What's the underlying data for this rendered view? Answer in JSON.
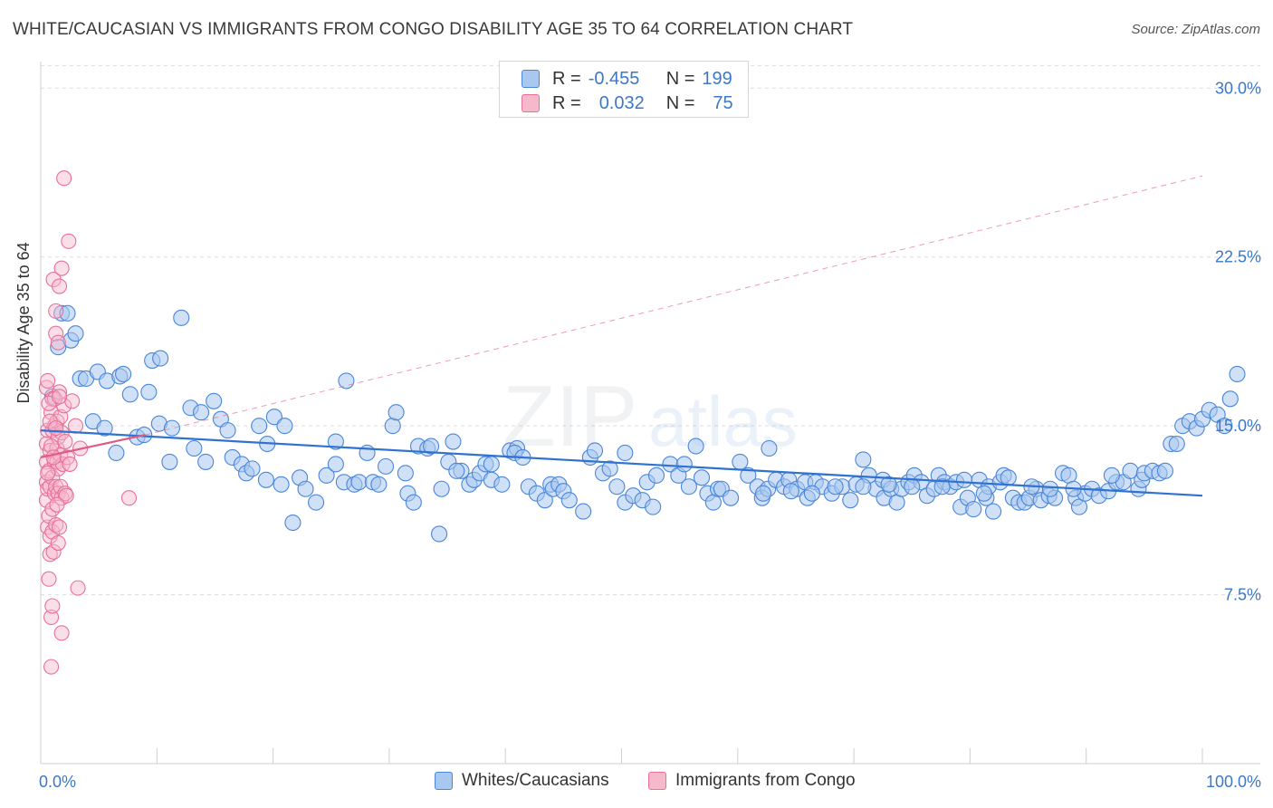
{
  "header": {
    "title": "WHITE/CAUCASIAN VS IMMIGRANTS FROM CONGO DISABILITY AGE 35 TO 64 CORRELATION CHART",
    "source": "Source: ZipAtlas.com"
  },
  "watermark": {
    "part1": "ZIP",
    "part2": "atlas"
  },
  "legend_top": {
    "rows": [
      {
        "r_label": "R =",
        "r_value": "-0.455",
        "n_label": "N =",
        "n_value": "199"
      },
      {
        "r_label": "R =",
        "r_value": "0.032",
        "n_label": "N =",
        "n_value": "75"
      }
    ]
  },
  "chart_data": {
    "type": "scatter",
    "title": "WHITE/CAUCASIAN VS IMMIGRANTS FROM CONGO DISABILITY AGE 35 TO 64 CORRELATION CHART",
    "xlabel": "",
    "ylabel": "Disability Age 35 to 64",
    "xlim": [
      0,
      100
    ],
    "ylim": [
      0,
      31.5
    ],
    "x_tick_labels": [
      "0.0%",
      "100.0%"
    ],
    "y_ticks": [
      7.5,
      15.0,
      22.5,
      30.0
    ],
    "y_tick_labels": [
      "7.5%",
      "15.0%",
      "22.5%",
      "30.0%"
    ],
    "grid": true,
    "legend_position": "top-center",
    "colors": {
      "blue": "#4a86d8",
      "blue_fill": "#a9c8f0",
      "pink": "#e8709a",
      "pink_fill": "#f6b8cb",
      "axis_text": "#3c78c8"
    },
    "series": [
      {
        "name": "Whites/Caucasians",
        "color": "#4a86d8",
        "r": -0.455,
        "n": 199,
        "trend": {
          "x": [
            0,
            100
          ],
          "y": [
            14.8,
            11.9
          ]
        },
        "points": [
          [
            1.0,
            16.3
          ],
          [
            1.5,
            18.5
          ],
          [
            1.8,
            20.0
          ],
          [
            2.3,
            20.0
          ],
          [
            2.6,
            18.8
          ],
          [
            3.0,
            19.1
          ],
          [
            3.4,
            17.1
          ],
          [
            3.9,
            17.1
          ],
          [
            4.5,
            15.2
          ],
          [
            4.9,
            17.4
          ],
          [
            5.5,
            14.9
          ],
          [
            5.7,
            17.0
          ],
          [
            6.5,
            13.8
          ],
          [
            6.8,
            17.2
          ],
          [
            7.1,
            17.3
          ],
          [
            7.7,
            16.4
          ],
          [
            8.3,
            14.5
          ],
          [
            8.9,
            14.6
          ],
          [
            9.3,
            16.5
          ],
          [
            9.6,
            17.9
          ],
          [
            10.3,
            18.0
          ],
          [
            10.2,
            15.1
          ],
          [
            11.1,
            13.4
          ],
          [
            11.3,
            14.9
          ],
          [
            12.1,
            19.8
          ],
          [
            12.9,
            15.8
          ],
          [
            13.2,
            14.0
          ],
          [
            13.8,
            15.6
          ],
          [
            14.2,
            13.4
          ],
          [
            14.9,
            16.1
          ],
          [
            15.5,
            15.3
          ],
          [
            16.1,
            14.8
          ],
          [
            16.5,
            13.6
          ],
          [
            17.3,
            13.3
          ],
          [
            17.7,
            12.9
          ],
          [
            18.2,
            13.1
          ],
          [
            18.8,
            15.0
          ],
          [
            19.4,
            12.6
          ],
          [
            19.5,
            14.2
          ],
          [
            20.1,
            15.4
          ],
          [
            21.0,
            15.0
          ],
          [
            20.7,
            12.4
          ],
          [
            21.7,
            10.7
          ],
          [
            22.3,
            12.7
          ],
          [
            22.8,
            12.2
          ],
          [
            23.7,
            11.6
          ],
          [
            24.6,
            12.8
          ],
          [
            25.4,
            13.3
          ],
          [
            25.4,
            14.3
          ],
          [
            26.1,
            12.5
          ],
          [
            26.3,
            17.0
          ],
          [
            27.0,
            12.4
          ],
          [
            27.4,
            12.5
          ],
          [
            28.1,
            13.8
          ],
          [
            28.6,
            12.5
          ],
          [
            29.1,
            12.4
          ],
          [
            29.7,
            13.2
          ],
          [
            30.3,
            15.0
          ],
          [
            30.6,
            15.6
          ],
          [
            31.4,
            12.9
          ],
          [
            31.6,
            12.0
          ],
          [
            32.1,
            11.6
          ],
          [
            32.5,
            14.1
          ],
          [
            33.3,
            14.0
          ],
          [
            33.6,
            14.1
          ],
          [
            34.3,
            10.2
          ],
          [
            34.5,
            12.2
          ],
          [
            35.1,
            13.4
          ],
          [
            35.5,
            14.3
          ],
          [
            36.2,
            13.0
          ],
          [
            35.8,
            13.0
          ],
          [
            36.9,
            12.4
          ],
          [
            37.3,
            12.6
          ],
          [
            37.8,
            12.9
          ],
          [
            38.3,
            13.3
          ],
          [
            38.8,
            13.3
          ],
          [
            38.8,
            12.6
          ],
          [
            39.7,
            12.4
          ],
          [
            40.4,
            13.9
          ],
          [
            41.0,
            14.0
          ],
          [
            40.8,
            13.8
          ],
          [
            41.5,
            13.6
          ],
          [
            42.0,
            12.3
          ],
          [
            42.7,
            12.0
          ],
          [
            43.4,
            11.7
          ],
          [
            43.9,
            12.4
          ],
          [
            44.1,
            12.2
          ],
          [
            44.6,
            12.4
          ],
          [
            45.0,
            12.1
          ],
          [
            45.5,
            11.7
          ],
          [
            46.7,
            11.2
          ],
          [
            47.3,
            13.6
          ],
          [
            47.7,
            13.9
          ],
          [
            48.4,
            12.9
          ],
          [
            49.0,
            13.1
          ],
          [
            49.6,
            12.3
          ],
          [
            50.3,
            11.6
          ],
          [
            50.3,
            13.8
          ],
          [
            51.0,
            11.9
          ],
          [
            51.8,
            11.7
          ],
          [
            52.2,
            12.5
          ],
          [
            52.7,
            11.4
          ],
          [
            53.0,
            12.8
          ],
          [
            54.2,
            13.3
          ],
          [
            54.9,
            12.8
          ],
          [
            55.4,
            13.3
          ],
          [
            55.8,
            12.3
          ],
          [
            56.4,
            14.1
          ],
          [
            56.9,
            12.7
          ],
          [
            57.4,
            12.0
          ],
          [
            57.9,
            11.6
          ],
          [
            58.3,
            12.2
          ],
          [
            58.6,
            12.2
          ],
          [
            59.4,
            11.8
          ],
          [
            60.2,
            13.4
          ],
          [
            60.9,
            12.8
          ],
          [
            61.7,
            12.3
          ],
          [
            62.1,
            11.8
          ],
          [
            62.7,
            14.0
          ],
          [
            62.6,
            12.2
          ],
          [
            63.3,
            12.6
          ],
          [
            64.0,
            12.3
          ],
          [
            64.4,
            12.6
          ],
          [
            65.1,
            12.2
          ],
          [
            65.8,
            12.5
          ],
          [
            66.0,
            11.8
          ],
          [
            66.7,
            12.5
          ],
          [
            67.3,
            12.3
          ],
          [
            68.1,
            12.0
          ],
          [
            69.0,
            12.3
          ],
          [
            69.7,
            11.7
          ],
          [
            70.2,
            12.4
          ],
          [
            70.8,
            13.5
          ],
          [
            71.3,
            12.8
          ],
          [
            71.9,
            12.2
          ],
          [
            72.5,
            12.6
          ],
          [
            72.6,
            11.8
          ],
          [
            73.2,
            12.2
          ],
          [
            73.7,
            11.6
          ],
          [
            74.1,
            12.2
          ],
          [
            74.7,
            12.5
          ],
          [
            75.2,
            12.8
          ],
          [
            75.8,
            12.5
          ],
          [
            76.3,
            11.9
          ],
          [
            76.9,
            12.2
          ],
          [
            77.3,
            12.8
          ],
          [
            77.8,
            12.5
          ],
          [
            78.3,
            12.3
          ],
          [
            78.8,
            12.5
          ],
          [
            79.2,
            11.4
          ],
          [
            79.8,
            11.8
          ],
          [
            80.3,
            11.3
          ],
          [
            80.8,
            12.6
          ],
          [
            81.4,
            11.8
          ],
          [
            81.6,
            12.3
          ],
          [
            82.0,
            11.2
          ],
          [
            82.6,
            12.5
          ],
          [
            82.9,
            12.8
          ],
          [
            83.7,
            11.8
          ],
          [
            84.2,
            11.6
          ],
          [
            84.7,
            11.6
          ],
          [
            85.1,
            11.8
          ],
          [
            85.7,
            12.2
          ],
          [
            86.1,
            11.7
          ],
          [
            86.8,
            11.9
          ],
          [
            87.3,
            11.8
          ],
          [
            88.0,
            12.9
          ],
          [
            88.5,
            12.8
          ],
          [
            89.1,
            11.8
          ],
          [
            89.4,
            11.4
          ],
          [
            89.9,
            12.0
          ],
          [
            90.5,
            12.2
          ],
          [
            91.1,
            11.9
          ],
          [
            91.9,
            12.1
          ],
          [
            92.6,
            12.5
          ],
          [
            93.2,
            12.5
          ],
          [
            93.8,
            13.0
          ],
          [
            94.5,
            12.2
          ],
          [
            94.8,
            12.6
          ],
          [
            95.0,
            12.9
          ],
          [
            95.7,
            13.0
          ],
          [
            96.3,
            12.9
          ],
          [
            96.8,
            13.0
          ],
          [
            97.3,
            14.2
          ],
          [
            97.8,
            14.2
          ],
          [
            98.3,
            15.0
          ],
          [
            98.9,
            15.2
          ],
          [
            99.5,
            14.9
          ],
          [
            100.0,
            15.3
          ],
          [
            100.6,
            15.7
          ],
          [
            101.3,
            15.5
          ],
          [
            101.9,
            15.0
          ],
          [
            102.4,
            16.2
          ],
          [
            103.0,
            17.3
          ],
          [
            92.2,
            12.8
          ],
          [
            88.9,
            12.2
          ],
          [
            86.9,
            12.2
          ],
          [
            85.3,
            12.3
          ],
          [
            83.3,
            12.7
          ],
          [
            81.2,
            12.0
          ],
          [
            79.5,
            12.6
          ],
          [
            77.6,
            12.3
          ],
          [
            75.0,
            12.3
          ],
          [
            73.0,
            12.4
          ],
          [
            70.8,
            12.3
          ],
          [
            68.4,
            12.3
          ],
          [
            66.4,
            12.0
          ],
          [
            64.6,
            12.1
          ],
          [
            62.2,
            12.0
          ]
        ]
      },
      {
        "name": "Immigrants from Congo",
        "color": "#e8709a",
        "r": 0.032,
        "n": 75,
        "trend": {
          "x": [
            0,
            9
          ],
          "y": [
            13.6,
            14.6
          ]
        },
        "trend_extended": {
          "x": [
            9,
            100
          ],
          "y": [
            14.6,
            26.1
          ]
        },
        "points": [
          [
            0.5,
            11.7
          ],
          [
            0.5,
            12.5
          ],
          [
            0.5,
            13.4
          ],
          [
            0.5,
            14.2
          ],
          [
            0.5,
            16.7
          ],
          [
            0.6,
            10.5
          ],
          [
            0.6,
            12.2
          ],
          [
            0.6,
            14.8
          ],
          [
            0.6,
            17.0
          ],
          [
            0.7,
            13.0
          ],
          [
            0.7,
            11.0
          ],
          [
            0.8,
            9.3
          ],
          [
            0.8,
            10.1
          ],
          [
            0.8,
            12.3
          ],
          [
            0.8,
            13.9
          ],
          [
            0.9,
            15.6
          ],
          [
            0.9,
            6.5
          ],
          [
            0.9,
            4.3
          ],
          [
            1.0,
            10.3
          ],
          [
            1.0,
            11.3
          ],
          [
            1.0,
            12.7
          ],
          [
            1.0,
            14.8
          ],
          [
            1.0,
            16.2
          ],
          [
            1.1,
            21.5
          ],
          [
            1.1,
            9.4
          ],
          [
            1.2,
            12.0
          ],
          [
            1.2,
            13.4
          ],
          [
            1.2,
            15.0
          ],
          [
            1.3,
            19.1
          ],
          [
            1.3,
            20.1
          ],
          [
            1.3,
            10.6
          ],
          [
            1.3,
            12.3
          ],
          [
            1.4,
            13.4
          ],
          [
            1.4,
            14.0
          ],
          [
            1.4,
            15.2
          ],
          [
            1.5,
            9.8
          ],
          [
            1.5,
            12.0
          ],
          [
            1.5,
            13.1
          ],
          [
            1.5,
            14.5
          ],
          [
            1.6,
            16.5
          ],
          [
            1.6,
            21.2
          ],
          [
            1.6,
            10.5
          ],
          [
            1.7,
            12.3
          ],
          [
            1.7,
            13.7
          ],
          [
            1.7,
            15.4
          ],
          [
            1.8,
            5.8
          ],
          [
            1.8,
            22.0
          ],
          [
            1.8,
            11.8
          ],
          [
            1.8,
            14.7
          ],
          [
            1.9,
            13.3
          ],
          [
            2.0,
            26.0
          ],
          [
            2.0,
            15.9
          ],
          [
            2.1,
            12.0
          ],
          [
            2.1,
            14.3
          ],
          [
            2.2,
            11.9
          ],
          [
            2.3,
            13.6
          ],
          [
            2.4,
            23.2
          ],
          [
            2.5,
            13.3
          ],
          [
            2.7,
            16.1
          ],
          [
            3.0,
            15.0
          ],
          [
            3.2,
            7.8
          ],
          [
            3.4,
            14.0
          ],
          [
            1.0,
            7.0
          ],
          [
            1.2,
            16.2
          ],
          [
            0.7,
            16.0
          ],
          [
            0.9,
            14.1
          ],
          [
            0.6,
            12.9
          ],
          [
            1.4,
            11.5
          ],
          [
            7.6,
            11.8
          ],
          [
            1.1,
            13.6
          ],
          [
            0.8,
            15.2
          ],
          [
            1.5,
            18.7
          ],
          [
            1.6,
            16.3
          ],
          [
            0.7,
            8.2
          ],
          [
            1.3,
            14.9
          ]
        ]
      }
    ]
  },
  "legend_bottom": {
    "items": [
      {
        "label": "Whites/Caucasians"
      },
      {
        "label": "Immigrants from Congo"
      }
    ]
  }
}
